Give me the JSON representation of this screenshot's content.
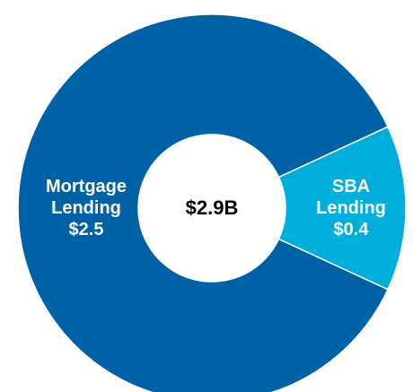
{
  "chart_data": {
    "type": "donut",
    "categories": [
      "Mortgage Lending",
      "SBA Lending"
    ],
    "values": [
      2.5,
      0.4
    ],
    "value_labels": [
      "$2.5",
      "$0.4"
    ],
    "colors": [
      "#0062a6",
      "#00aedb"
    ],
    "center_label": "$2.9B"
  }
}
